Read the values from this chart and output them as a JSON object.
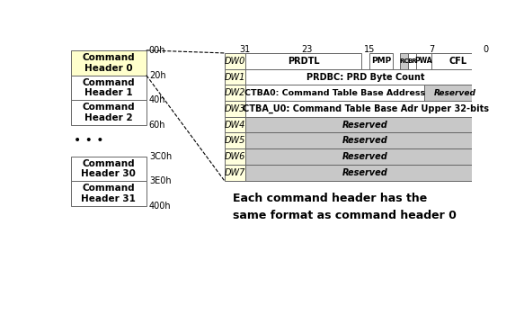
{
  "bg_color": "#ffffff",
  "left_headers": [
    {
      "label": "Command\nHeader 0",
      "addr": "00h",
      "highlighted": true
    },
    {
      "label": "Command\nHeader 1",
      "addr": "20h",
      "highlighted": false
    },
    {
      "label": "Command\nHeader 2",
      "addr": "40h",
      "highlighted": false
    }
  ],
  "left_bottom_addr": "60h",
  "left_headers2": [
    {
      "label": "Command\nHeader 30",
      "addr": "3C0h",
      "highlighted": false
    },
    {
      "label": "Command\nHeader 31",
      "addr": "3E0h",
      "highlighted": false
    }
  ],
  "left_bottom_addr2": "400h",
  "dots": "• • •",
  "dw_rows": [
    {
      "name": "DW0",
      "type": "dw0"
    },
    {
      "name": "DW1",
      "type": "full_white",
      "text": "PRDBC: PRD Byte Count"
    },
    {
      "name": "DW2",
      "type": "split",
      "text_main": "CTBA0: Command Table Base Address",
      "text_res": "Reserved"
    },
    {
      "name": "DW3",
      "type": "full_white",
      "text": "CTBA_U0: Command Table Base Adr Upper 32-bits"
    },
    {
      "name": "DW4",
      "type": "full_gray",
      "text": "Reserved"
    },
    {
      "name": "DW5",
      "type": "full_gray",
      "text": "Reserved"
    },
    {
      "name": "DW6",
      "type": "full_gray",
      "text": "Reserved"
    },
    {
      "name": "DW7",
      "type": "full_gray",
      "text": "Reserved"
    }
  ],
  "note_text": "Each command header has the\nsame format as command header 0",
  "header_highlight": "#ffffcc",
  "header_normal": "#ffffff",
  "dw_label_color": "#ffffdd",
  "gray_cell": "#c8c8c8",
  "white_cell": "#ffffff",
  "border_color": "#888888"
}
